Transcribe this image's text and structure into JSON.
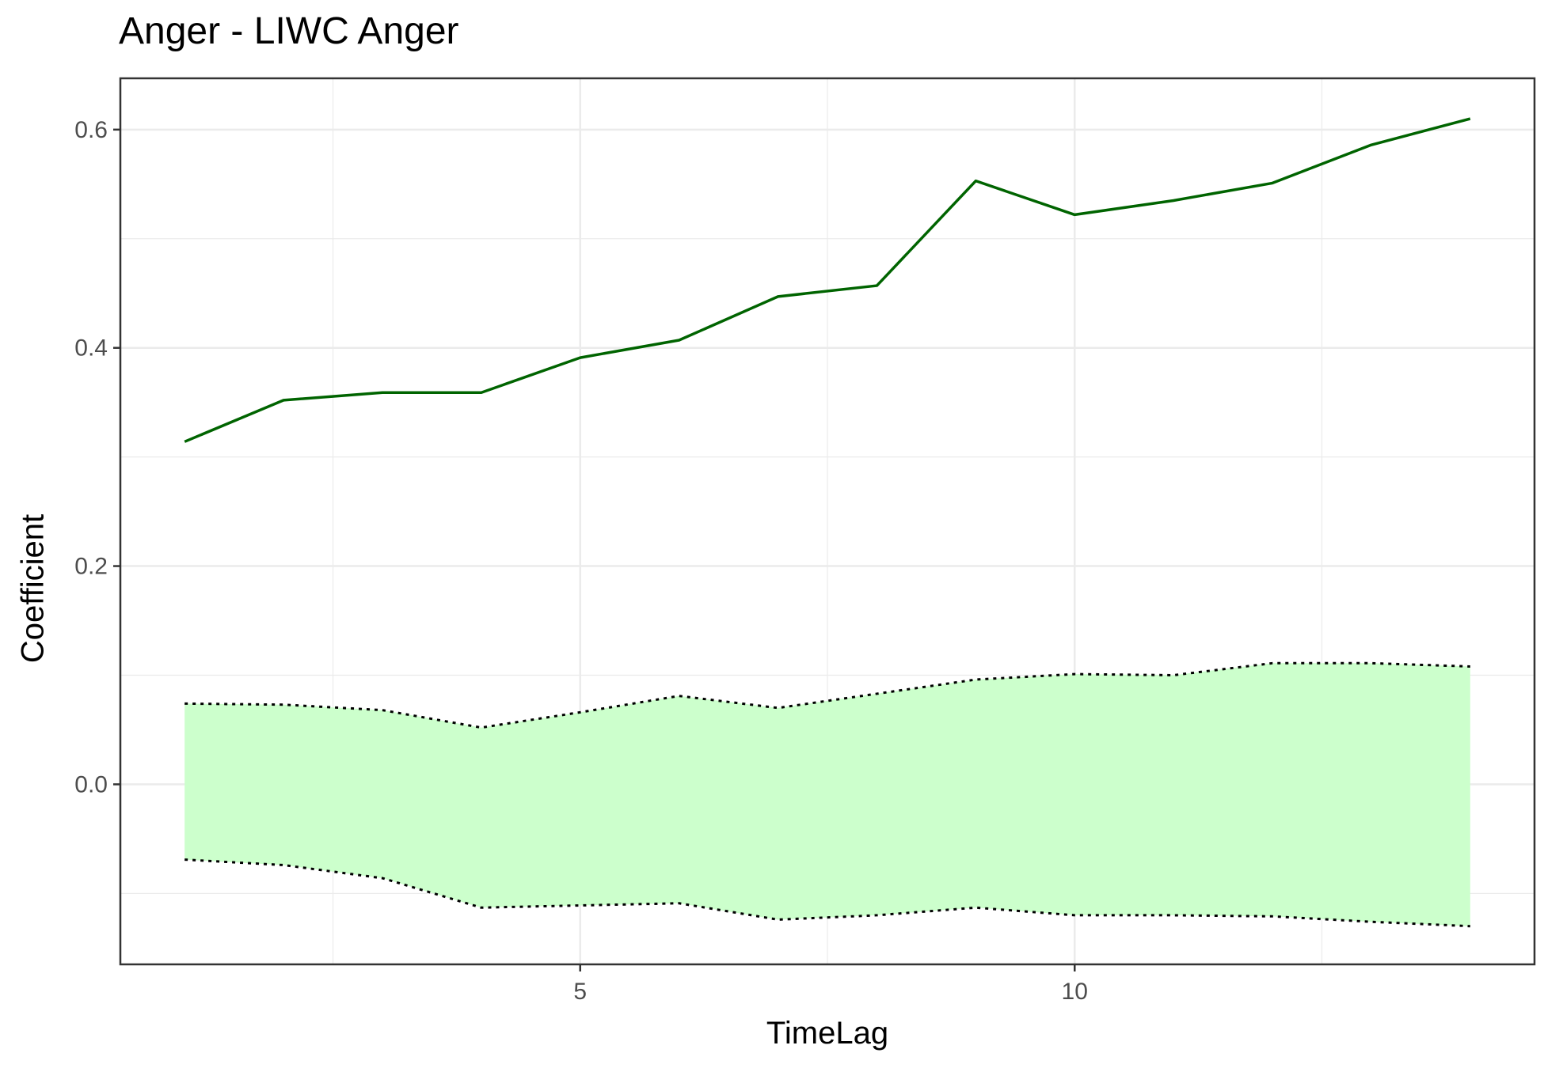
{
  "chart_data": {
    "type": "line",
    "title": "Anger - LIWC Anger",
    "xlabel": "TimeLag",
    "ylabel": "Coefficient",
    "xlim": [
      0.35,
      14.65
    ],
    "ylim": [
      -0.165,
      0.647
    ],
    "x_ticks": [
      5,
      10
    ],
    "x_tick_labels": [
      "5",
      "10"
    ],
    "x_minor_ticks": [
      2.5,
      7.5,
      12.5
    ],
    "y_ticks": [
      0.0,
      0.2,
      0.4,
      0.6
    ],
    "y_tick_labels": [
      "0.0",
      "0.2",
      "0.4",
      "0.6"
    ],
    "y_minor_ticks": [
      -0.1,
      0.1,
      0.3,
      0.5
    ],
    "grid": true,
    "legend": "none",
    "x": [
      1,
      2,
      3,
      4,
      5,
      6,
      7,
      8,
      9,
      10,
      11,
      12,
      13,
      14
    ],
    "series": [
      {
        "kind": "line",
        "style": "solid",
        "color": "#006400",
        "values": [
          0.314,
          0.352,
          0.359,
          0.359,
          0.391,
          0.407,
          0.447,
          0.457,
          0.553,
          0.522,
          0.535,
          0.551,
          0.586,
          0.61
        ]
      },
      {
        "kind": "band-upper",
        "style": "dotted",
        "color": "#000000",
        "values": [
          0.074,
          0.073,
          0.068,
          0.052,
          0.066,
          0.081,
          0.07,
          0.083,
          0.096,
          0.101,
          0.1,
          0.111,
          0.111,
          0.108
        ]
      },
      {
        "kind": "band-lower",
        "style": "dotted",
        "color": "#000000",
        "values": [
          -0.069,
          -0.074,
          -0.086,
          -0.113,
          -0.111,
          -0.109,
          -0.124,
          -0.12,
          -0.113,
          -0.12,
          -0.12,
          -0.121,
          -0.126,
          -0.13
        ]
      }
    ],
    "band_fill_color": "#ccffcc",
    "panel_border_color": "#333333",
    "grid_color": "#ebebeb"
  }
}
